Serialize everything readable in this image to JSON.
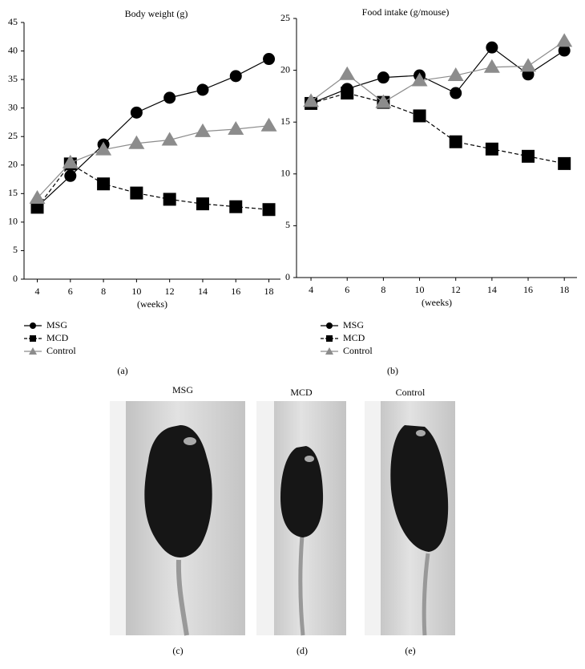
{
  "chart_data": [
    {
      "type": "line",
      "title": "Body weight (g)",
      "xlabel": "(weeks)",
      "x": [
        4,
        6,
        8,
        10,
        12,
        14,
        16,
        18
      ],
      "xlim": [
        3.2,
        18.7
      ],
      "xticks": [
        4,
        6,
        8,
        10,
        12,
        14,
        16,
        18
      ],
      "ylim": [
        0,
        45
      ],
      "yticks": [
        0,
        5,
        10,
        15,
        20,
        25,
        30,
        35,
        40,
        45
      ],
      "series": [
        {
          "name": "MSG",
          "color": "#000000",
          "marker": "circle",
          "dashed": false,
          "values": [
            12.7,
            18.1,
            23.6,
            29.2,
            31.8,
            33.2,
            35.6,
            38.6
          ]
        },
        {
          "name": "MCD",
          "color": "#000000",
          "marker": "square",
          "dashed": true,
          "values": [
            12.6,
            20.2,
            16.7,
            15.1,
            14.0,
            13.2,
            12.7,
            12.2
          ]
        },
        {
          "name": "Control",
          "color": "#8c8c8c",
          "marker": "triangle",
          "dashed": false,
          "values": [
            14.2,
            20.4,
            22.7,
            23.8,
            24.4,
            25.9,
            26.3,
            26.9
          ]
        }
      ],
      "panel_label": "(a)"
    },
    {
      "type": "line",
      "title": "Food intake (g/mouse)",
      "xlabel": "(weeks)",
      "x": [
        4,
        6,
        8,
        10,
        12,
        14,
        16,
        18
      ],
      "xlim": [
        3.2,
        18.7
      ],
      "xticks": [
        4,
        6,
        8,
        10,
        12,
        14,
        16,
        18
      ],
      "ylim": [
        0,
        25
      ],
      "yticks": [
        0,
        5,
        10,
        15,
        20,
        25
      ],
      "series": [
        {
          "name": "MSG",
          "color": "#000000",
          "marker": "circle",
          "dashed": false,
          "values": [
            16.8,
            18.2,
            19.3,
            19.5,
            17.8,
            22.2,
            19.6,
            21.9
          ]
        },
        {
          "name": "MCD",
          "color": "#000000",
          "marker": "square",
          "dashed": true,
          "values": [
            16.8,
            17.8,
            16.9,
            15.6,
            13.1,
            12.4,
            11.7,
            11.0
          ]
        },
        {
          "name": "Control",
          "color": "#8c8c8c",
          "marker": "triangle",
          "dashed": false,
          "values": [
            17.0,
            19.6,
            16.9,
            19.0,
            19.5,
            20.3,
            20.4,
            22.8
          ]
        }
      ],
      "panel_label": "(b)"
    }
  ],
  "photos": [
    {
      "title": "MSG",
      "label": "(c)"
    },
    {
      "title": "MCD",
      "label": "(d)"
    },
    {
      "title": "Control",
      "label": "(e)"
    }
  ]
}
